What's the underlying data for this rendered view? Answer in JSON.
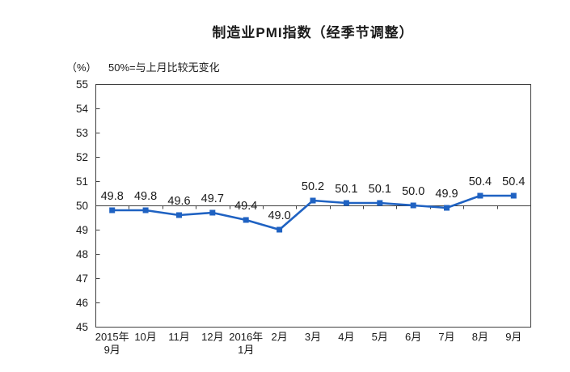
{
  "header": {
    "title": "制造业PMI指数（经季节调整）",
    "unit_label": "（%）",
    "note": "50%=与上月比较无变化"
  },
  "chart_data": {
    "type": "line",
    "title": "制造业PMI指数（经季节调整）",
    "subtitle": "50%=与上月比较无变化",
    "unit": "（%）",
    "categories": [
      "2015年|9月",
      "10月",
      "11月",
      "12月",
      "2016年|1月",
      "2月",
      "3月",
      "4月",
      "5月",
      "6月",
      "7月",
      "8月",
      "9月"
    ],
    "values": [
      49.8,
      49.8,
      49.6,
      49.7,
      49.4,
      49.0,
      50.2,
      50.1,
      50.1,
      50.0,
      49.9,
      50.4,
      50.4
    ],
    "ylim": [
      45,
      55
    ],
    "ytick_step": 1,
    "baseline_value": 50,
    "grid": false,
    "legend": "none",
    "marker": "square",
    "colors": {
      "line": "#1F62C2",
      "axis": "#3f3f3f",
      "text": "#1a1a1a"
    }
  }
}
